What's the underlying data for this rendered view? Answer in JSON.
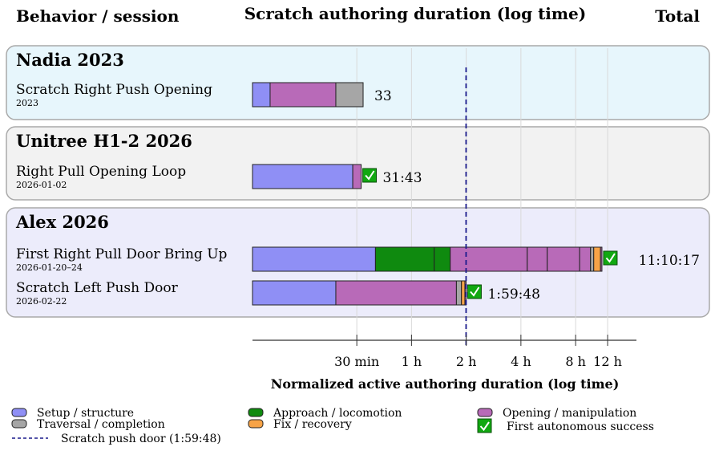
{
  "chart_data": {
    "type": "bar",
    "orientation": "horizontal-stacked",
    "header_left": "Behavior / session",
    "title": "Scratch authoring duration (log time)",
    "header_right": "Total",
    "xlabel": "Normalized active authoring duration (log time)",
    "x_scale": "log",
    "xlim_minutes": [
      8,
      900
    ],
    "ticks": [
      {
        "label": "30 min",
        "minutes": 30
      },
      {
        "label": "1 h",
        "minutes": 60
      },
      {
        "label": "2 h",
        "minutes": 120
      },
      {
        "label": "4 h",
        "minutes": 240
      },
      {
        "label": "8 h",
        "minutes": 480
      },
      {
        "label": "12 h",
        "minutes": 720
      }
    ],
    "grid": true,
    "reference_line": {
      "label": "Scratch push door (1:59:48)",
      "minutes": 119.8,
      "color": "#1a1a8c"
    },
    "categories": [
      {
        "key": "setup",
        "label": "Setup / structure",
        "color": "#8f8ff5"
      },
      {
        "key": "approach",
        "label": "Approach / locomotion",
        "color": "#0f8a0f"
      },
      {
        "key": "opening",
        "label": "Opening / manipulation",
        "color": "#b86ab8"
      },
      {
        "key": "traversal",
        "label": "Traversal / completion",
        "color": "#a6a6a6"
      },
      {
        "key": "fix",
        "label": "Fix / recovery",
        "color": "#f7a347"
      },
      {
        "key": "success",
        "label": "First autonomous success",
        "color": "#11a811"
      }
    ],
    "groups": [
      {
        "title": "Nadia 2023",
        "bg": "#e7f6fc",
        "rows": [
          {
            "label": "Scratch Right Push Opening",
            "date": "2023",
            "total": "33",
            "success": false,
            "segments": [
              [
                "setup",
                8,
                10
              ],
              [
                "opening",
                10,
                23
              ],
              [
                "traversal",
                23,
                32.5
              ]
            ]
          }
        ]
      },
      {
        "title": "Unitree H1-2 2026",
        "bg": "#f2f2f2",
        "rows": [
          {
            "label": "Right Pull Opening Loop",
            "date": "2026-01-02",
            "total": "31:43",
            "success": true,
            "segments": [
              [
                "setup",
                8,
                28.5
              ],
              [
                "opening",
                28.5,
                31.7
              ]
            ]
          }
        ]
      },
      {
        "title": "Alex 2026",
        "bg": "#ececfb",
        "rows": [
          {
            "label": "First Right Pull Door Bring Up",
            "date": "2026-01-20–24",
            "total": "11:10:17",
            "success": true,
            "segments": [
              [
                "setup",
                8,
                38
              ],
              [
                "approach",
                38,
                80
              ],
              [
                "approach",
                80,
                98
              ],
              [
                "opening",
                98,
                260
              ],
              [
                "opening",
                260,
                335
              ],
              [
                "opening",
                335,
                505
              ],
              [
                "opening",
                505,
                580
              ],
              [
                "traversal",
                580,
                604
              ],
              [
                "fix",
                604,
                658
              ],
              [
                "opening",
                658,
                670
              ]
            ]
          },
          {
            "label": "Scratch Left Push Door",
            "date": "2026-02-22",
            "total": "1:59:48",
            "success": true,
            "segments": [
              [
                "setup",
                8,
                23
              ],
              [
                "opening",
                23,
                106
              ],
              [
                "traversal",
                106,
                113
              ],
              [
                "fix",
                113,
                118
              ],
              [
                "opening",
                118,
                119.8
              ]
            ]
          }
        ]
      }
    ]
  }
}
